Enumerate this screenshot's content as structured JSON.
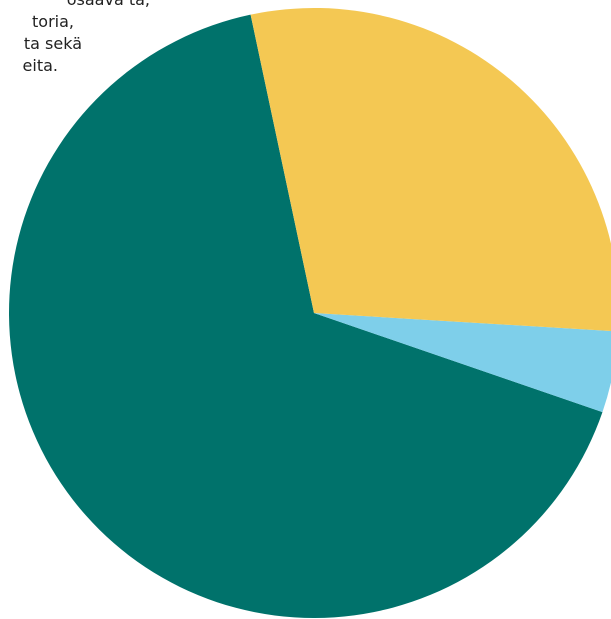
{
  "caption": {
    "lines": [
      "osaava ta,",
      "toria,",
      "ta sekä",
      "eita."
    ]
  },
  "colors": {
    "background": "#ffffff",
    "text": "#222222"
  },
  "chart_data": {
    "type": "pie",
    "title": "",
    "start_angle_deg": 102,
    "direction": "counterclockwise",
    "slices": [
      {
        "label": "",
        "value": 66.4,
        "color": "#00726B"
      },
      {
        "label": "",
        "value": 4.3,
        "color": "#7ECFEA"
      },
      {
        "label": "",
        "value": 29.3,
        "color": "#F4C853"
      }
    ]
  }
}
